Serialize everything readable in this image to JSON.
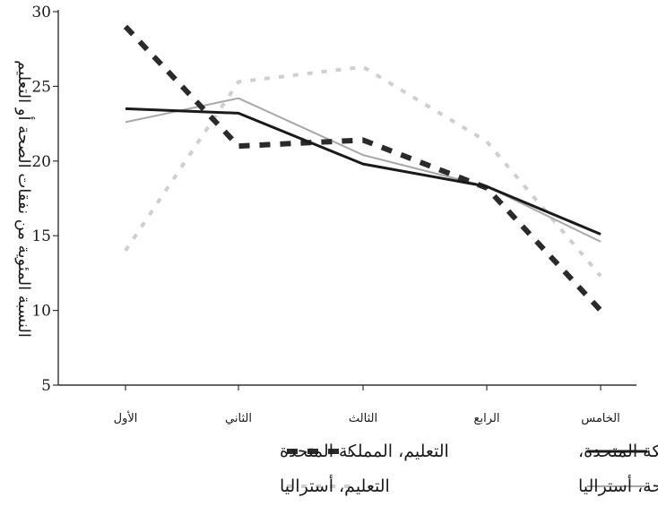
{
  "chart_data": {
    "type": "line",
    "ylabel": "النسبة المئوية من نفقات الصحة أو التعليم",
    "xlabel": "",
    "ylim": [
      5,
      30
    ],
    "yticks": [
      5,
      10,
      15,
      20,
      25,
      30
    ],
    "categories": [
      "الأول",
      "الثاني",
      "الثالث",
      "الرابع",
      "الخامس"
    ],
    "grid": false,
    "legend_position": "bottom",
    "series": [
      {
        "name": "الصحة – المملكة المتحدة،",
        "style": "solid-thick",
        "color": "#1a1a1a",
        "values": [
          23.5,
          23.2,
          19.8,
          18.3,
          15.1
        ]
      },
      {
        "name": "التعليم، المملكة المتحدة",
        "style": "dashed-thick",
        "color": "#333333",
        "values": [
          29.0,
          21.0,
          21.4,
          18.2,
          10.0
        ]
      },
      {
        "name": "الصحة، أستراليا",
        "style": "solid-thin",
        "color": "#aaaaaa",
        "values": [
          22.6,
          24.2,
          20.4,
          18.3,
          14.6
        ]
      },
      {
        "name": "التعليم، أستراليا",
        "style": "dotted-light",
        "color": "#cccccc",
        "values": [
          14.0,
          25.3,
          26.3,
          21.3,
          12.3
        ]
      }
    ]
  }
}
